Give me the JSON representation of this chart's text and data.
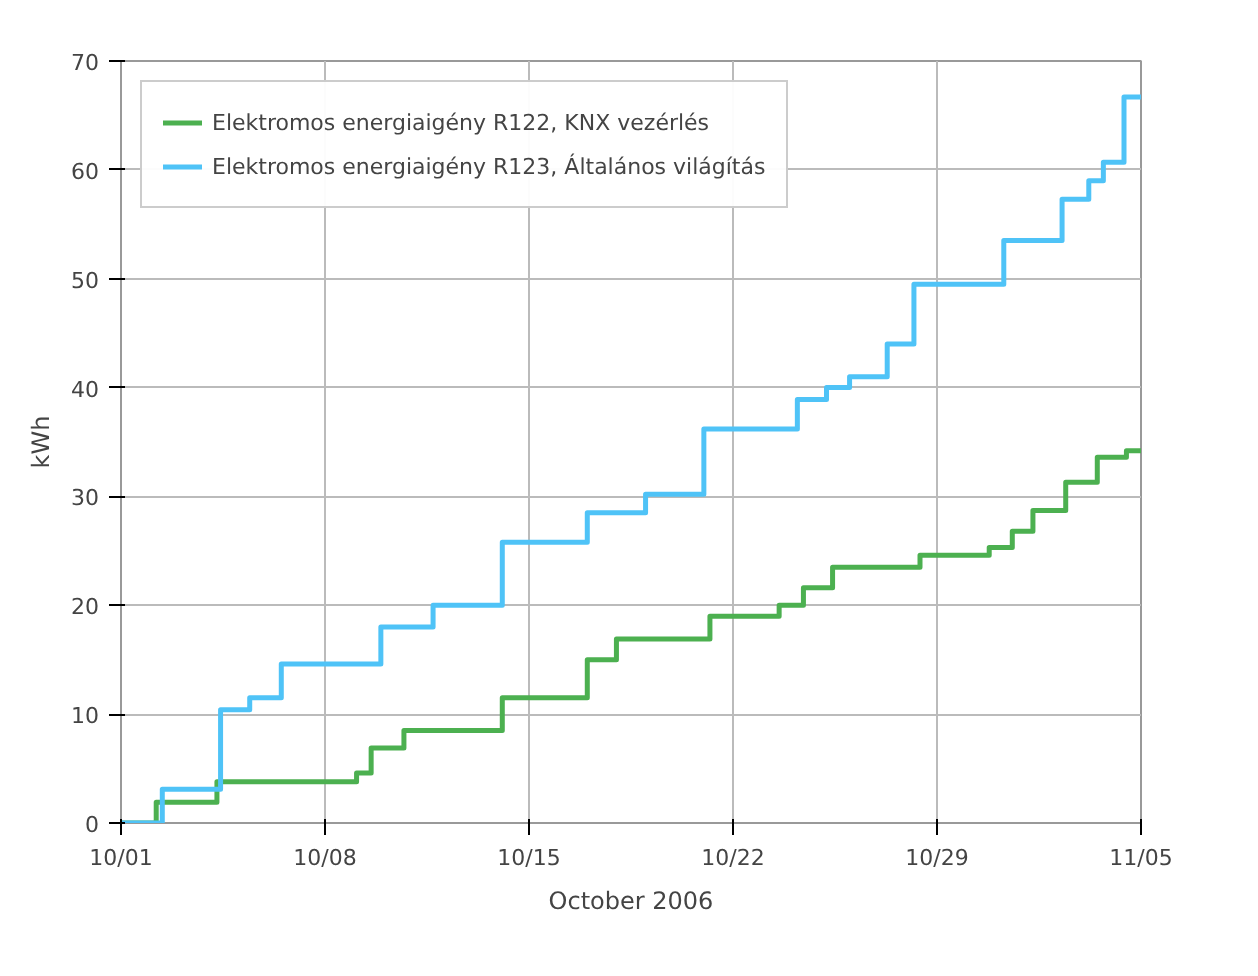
{
  "chart_data": {
    "type": "step",
    "xlabel": "October 2006",
    "ylabel": "kWh",
    "xlim": [
      "2006-10-01",
      "2006-11-05"
    ],
    "ylim": [
      0,
      70
    ],
    "xticks": [
      {
        "value": "2006-10-01",
        "label": "10/01"
      },
      {
        "value": "2006-10-08",
        "label": "10/08"
      },
      {
        "value": "2006-10-15",
        "label": "10/15"
      },
      {
        "value": "2006-10-22",
        "label": "10/22"
      },
      {
        "value": "2006-10-29",
        "label": "10/29"
      },
      {
        "value": "2006-11-05",
        "label": "11/05"
      }
    ],
    "yticks": [
      0,
      10,
      20,
      30,
      40,
      50,
      60,
      70
    ],
    "grid": true,
    "legend": "top left",
    "marker": "none",
    "line_style": "solid",
    "series": [
      {
        "name": "Elektromos energiaigény R122, KNX vezérlés",
        "color": "#4cb050",
        "x": [
          "2006-10-01",
          "2006-10-02T05:00",
          "2006-10-04T07:00",
          "2006-10-09T02:00",
          "2006-10-09T14:00",
          "2006-10-10T17:00",
          "2006-10-14T02:00",
          "2006-10-17",
          "2006-10-18",
          "2006-10-21T05:00",
          "2006-10-23T14:00",
          "2006-10-24T10:00",
          "2006-10-25T10:00",
          "2006-10-28T10:00",
          "2006-10-30T19:00",
          "2006-10-31T14:00",
          "2006-11-01T07:00",
          "2006-11-02T10:00",
          "2006-11-03T12:00",
          "2006-11-04T12:00",
          "2006-11-05"
        ],
        "values": [
          0,
          1.9,
          3.8,
          4.6,
          6.9,
          8.5,
          11.5,
          15,
          16.9,
          19,
          20,
          21.6,
          23.5,
          24.6,
          25.3,
          26.8,
          28.7,
          31.3,
          33.6,
          34.2,
          34.2
        ]
      },
      {
        "name": "Elektromos energiaigény R123, Általános világítás",
        "color": "#4fc3f7",
        "x": [
          "2006-10-01",
          "2006-10-02T10:00",
          "2006-10-04T10:00",
          "2006-10-05T10:00",
          "2006-10-06T12:00",
          "2006-10-09T22:00",
          "2006-10-11T17:00",
          "2006-10-14T02:00",
          "2006-10-17",
          "2006-10-19",
          "2006-10-21",
          "2006-10-24T05:00",
          "2006-10-25T05:00",
          "2006-10-26",
          "2006-10-27T07:00",
          "2006-10-28T05:00",
          "2006-10-31T07:00",
          "2006-11-02T07:00",
          "2006-11-03T05:00",
          "2006-11-03T17:00",
          "2006-11-04T10:00",
          "2006-11-05"
        ],
        "values": [
          0,
          3.1,
          10.4,
          11.5,
          14.6,
          18,
          20,
          25.8,
          28.5,
          30.2,
          36.2,
          38.9,
          40,
          41,
          44,
          49.5,
          53.5,
          57.3,
          59,
          60.7,
          66.7,
          66.7
        ]
      }
    ]
  }
}
